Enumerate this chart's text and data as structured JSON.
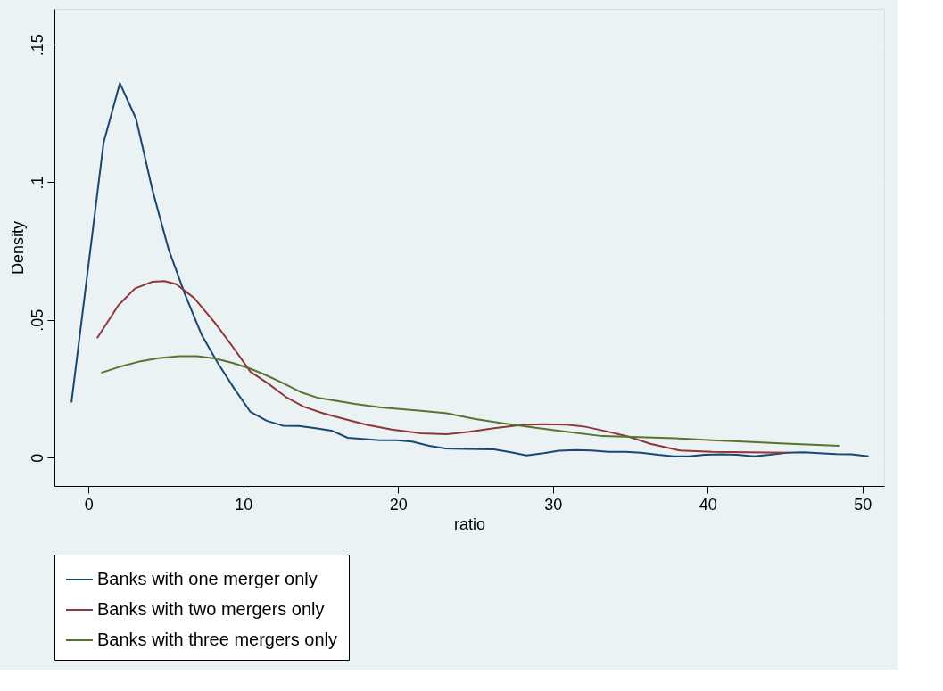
{
  "chart_data": {
    "type": "line",
    "xlabel": "ratio",
    "ylabel": "Density",
    "xlim": [
      -2.2,
      51.4
    ],
    "ylim": [
      -0.0103,
      0.163
    ],
    "xticks": [
      0,
      10,
      20,
      30,
      40,
      50
    ],
    "yticks": [
      {
        "value": 0,
        "label": "0"
      },
      {
        "value": 0.05,
        "label": ".05"
      },
      {
        "value": 0.1,
        "label": ".1"
      },
      {
        "value": 0.15,
        "label": ".15"
      }
    ],
    "grid": "y",
    "legend": "bottom",
    "line_style": "solid",
    "marker": "none",
    "series": [
      {
        "name": "Banks with one merger only",
        "color": "#1a476f",
        "x": [
          -1.1,
          0.98,
          2.03,
          3.08,
          4.14,
          5.19,
          6.24,
          7.3,
          8.35,
          9.4,
          10.46,
          11.51,
          12.56,
          13.6,
          14.67,
          15.7,
          16.75,
          18.8,
          19.9,
          20.9,
          22.0,
          23.06,
          25.2,
          26.2,
          27.3,
          28.3,
          29.4,
          30.4,
          31.5,
          32.5,
          33.6,
          34.7,
          35.7,
          36.8,
          37.8,
          38.8,
          39.8,
          40.9,
          41.9,
          43.0,
          44.0,
          45.1,
          46.2,
          47.2,
          48.3,
          49.3,
          50.4
        ],
        "values": [
          0.02,
          0.1145,
          0.136,
          0.123,
          0.097,
          0.0754,
          0.0592,
          0.0447,
          0.0344,
          0.0252,
          0.0166,
          0.0134,
          0.0116,
          0.0115,
          0.0107,
          0.0098,
          0.0072,
          0.0063,
          0.0063,
          0.0058,
          0.0043,
          0.0033,
          0.0031,
          0.003,
          0.0019,
          0.0008,
          0.0016,
          0.0025,
          0.0027,
          0.0026,
          0.0021,
          0.0021,
          0.0018,
          0.001,
          0.0005,
          0.0005,
          0.001,
          0.0012,
          0.001,
          0.0005,
          0.001,
          0.0018,
          0.0019,
          0.0016,
          0.0013,
          0.0012,
          0.0005
        ]
      },
      {
        "name": "Banks with two mergers only",
        "color": "#90353b",
        "x": [
          0.56,
          1.94,
          3.0,
          4.14,
          4.9,
          5.67,
          6.82,
          8.16,
          9.3,
          10.46,
          11.6,
          12.76,
          13.9,
          15.15,
          16.6,
          18.0,
          19.6,
          21.5,
          23.15,
          24.6,
          26.2,
          27.9,
          29.3,
          30.9,
          32.1,
          33.5,
          34.9,
          36.3,
          38.2,
          40.3,
          42.6,
          45.1
        ],
        "values": [
          0.0434,
          0.0554,
          0.0614,
          0.0639,
          0.0641,
          0.063,
          0.058,
          0.049,
          0.0404,
          0.0312,
          0.0269,
          0.022,
          0.0185,
          0.0161,
          0.0139,
          0.0119,
          0.0102,
          0.0088,
          0.0085,
          0.0094,
          0.0107,
          0.0118,
          0.0121,
          0.012,
          0.0112,
          0.0095,
          0.0076,
          0.005,
          0.0026,
          0.0021,
          0.0019,
          0.0018
        ]
      },
      {
        "name": "Banks with three mergers only",
        "color": "#55752f",
        "x": [
          0.82,
          2.03,
          3.37,
          4.5,
          5.86,
          7.0,
          8.16,
          9.3,
          10.46,
          11.4,
          12.56,
          13.7,
          14.77,
          16.0,
          17.2,
          18.9,
          21.5,
          23.15,
          25.0,
          26.9,
          28.55,
          30.9,
          33.2,
          35.6,
          37.9,
          40.3,
          42.6,
          45.0,
          48.5
        ],
        "values": [
          0.0308,
          0.033,
          0.035,
          0.0361,
          0.0368,
          0.0368,
          0.036,
          0.0344,
          0.0323,
          0.0301,
          0.0271,
          0.0238,
          0.0218,
          0.0206,
          0.0195,
          0.0182,
          0.017,
          0.0161,
          0.014,
          0.0124,
          0.0111,
          0.0094,
          0.0078,
          0.0074,
          0.007,
          0.0063,
          0.0057,
          0.0051,
          0.0043
        ]
      }
    ]
  }
}
